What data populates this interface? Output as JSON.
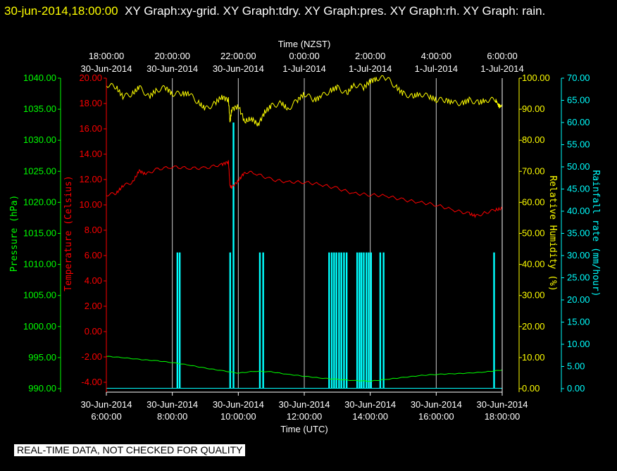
{
  "header": {
    "timestamp": "30-jun-2014,18:00:00",
    "graphs": "XY Graph:xy-grid.  XY Graph:tdry.  XY Graph:pres.  XY Graph:rh.  XY Graph: rain."
  },
  "notice": "REAL-TIME DATA, NOT CHECKED FOR QUALITY",
  "colors": {
    "pressure": "#00ff00",
    "temperature": "#ff0000",
    "humidity": "#ffff00",
    "rain": "#00ffff"
  },
  "chart_data": {
    "type": "line",
    "top_axis": {
      "label": "Time (NZST)",
      "ticks": [
        {
          "t": "18:00:00",
          "d": "30-Jun-2014"
        },
        {
          "t": "20:00:00",
          "d": "30-Jun-2014"
        },
        {
          "t": "22:00:00",
          "d": "30-Jun-2014"
        },
        {
          "t": "0:00:00",
          "d": "1-Jul-2014"
        },
        {
          "t": "2:00:00",
          "d": "1-Jul-2014"
        },
        {
          "t": "4:00:00",
          "d": "1-Jul-2014"
        },
        {
          "t": "6:00:00",
          "d": "1-Jul-2014"
        }
      ]
    },
    "bottom_axis": {
      "label": "Time (UTC)",
      "xlim": [
        "30-Jun-2014 6:00:00",
        "30-Jun-2014 18:00:00"
      ],
      "ticks": [
        {
          "d": "30-Jun-2014",
          "t": "6:00:00"
        },
        {
          "d": "30-Jun-2014",
          "t": "8:00:00"
        },
        {
          "d": "30-Jun-2014",
          "t": "10:00:00"
        },
        {
          "d": "30-Jun-2014",
          "t": "12:00:00"
        },
        {
          "d": "30-Jun-2014",
          "t": "14:00:00"
        },
        {
          "d": "30-Jun-2014",
          "t": "16:00:00"
        },
        {
          "d": "30-Jun-2014",
          "t": "18:00:00"
        }
      ]
    },
    "axes": {
      "pressure": {
        "label": "Pressure (hPa)",
        "ylim": [
          990,
          1040
        ],
        "ticks": [
          "1040.00",
          "1035.00",
          "1030.00",
          "1025.00",
          "1020.00",
          "1015.00",
          "1010.00",
          "1005.00",
          "1000.00",
          "995.00",
          "990.00"
        ]
      },
      "temperature": {
        "label": "Temperature (Celsius)",
        "ylim": [
          -4.5,
          20
        ],
        "ticks": [
          "20.00",
          "18.00",
          "16.00",
          "14.00",
          "12.00",
          "10.00",
          "8.00",
          "6.00",
          "4.00",
          "2.00",
          "0.00",
          "-2.00",
          "-4.00"
        ]
      },
      "humidity": {
        "label": "Relative Humidity (%)",
        "ylim": [
          0,
          100
        ],
        "ticks": [
          "100.00",
          "90.00",
          "80.00",
          "70.00",
          "60.00",
          "50.00",
          "40.00",
          "30.00",
          "20.00",
          "10.00",
          "0.00"
        ]
      },
      "rain": {
        "label": "Rainfall rate (mm/hour)",
        "ylim": [
          0,
          70
        ],
        "ticks": [
          "70.00",
          "65.00",
          "60.00",
          "55.00",
          "50.00",
          "45.00",
          "40.00",
          "35.00",
          "30.00",
          "25.00",
          "20.00",
          "15.00",
          "10.00",
          "5.00",
          "0.00"
        ]
      }
    },
    "series": [
      {
        "name": "pres",
        "axis": "pressure",
        "color": "#00ff00",
        "x": [
          6,
          6.5,
          7,
          7.5,
          8,
          8.5,
          9,
          9.5,
          10,
          10.5,
          11,
          11.5,
          12,
          12.5,
          13,
          13.5,
          14,
          14.5,
          15,
          15.5,
          16,
          16.5,
          17,
          17.5,
          18
        ],
        "y": [
          995.2,
          995,
          994.7,
          994.5,
          994.2,
          993.8,
          993.3,
          992.9,
          992.5,
          992.8,
          992.7,
          992.3,
          992,
          991.7,
          991.5,
          991.3,
          991.2,
          991.5,
          991.8,
          992.1,
          992.3,
          992.4,
          992.5,
          992.7,
          993
        ]
      },
      {
        "name": "tdry",
        "axis": "temperature",
        "color": "#ff0000",
        "x": [
          6,
          6.3,
          6.5,
          6.8,
          7,
          7.2,
          7.5,
          8,
          8.5,
          9,
          9.5,
          9.7,
          9.75,
          9.8,
          10,
          10.2,
          10.5,
          11,
          11.5,
          12,
          12.5,
          13,
          13.5,
          14,
          14.5,
          15,
          15.5,
          16,
          16.5,
          17,
          17.2,
          17.5,
          17.8,
          18
        ],
        "y": [
          10.8,
          10.9,
          11.5,
          11.8,
          12.7,
          12.4,
          12.8,
          13,
          12.9,
          12.9,
          13.2,
          13.4,
          11.5,
          11.4,
          11.9,
          12.6,
          12.5,
          12,
          11.8,
          11.8,
          11.6,
          11.3,
          10.9,
          10.8,
          10.7,
          10.4,
          10.2,
          10,
          9.6,
          9.3,
          9.1,
          9.4,
          9.6,
          9.7
        ]
      },
      {
        "name": "rh",
        "axis": "humidity",
        "color": "#ffff00",
        "x": [
          6,
          6.3,
          6.5,
          6.8,
          7,
          7.3,
          7.5,
          7.8,
          8,
          8.3,
          8.5,
          8.8,
          9,
          9.3,
          9.5,
          9.7,
          9.75,
          9.8,
          10,
          10.2,
          10.4,
          10.6,
          10.8,
          11,
          11.3,
          11.5,
          11.8,
          12,
          12.3,
          12.5,
          12.8,
          13,
          13.3,
          13.5,
          13.8,
          14,
          14.2,
          14.5,
          14.8,
          15,
          15.3,
          15.5,
          15.8,
          16,
          16.3,
          16.5,
          16.8,
          17,
          17.3,
          17.5,
          17.8,
          17.9,
          18
        ],
        "y": [
          98,
          97,
          94,
          95,
          97,
          94,
          96,
          97,
          95,
          95,
          95,
          92,
          90,
          92,
          94,
          93,
          86,
          90,
          91,
          86,
          87,
          85,
          89,
          91,
          92,
          90,
          93,
          95,
          93,
          94,
          96,
          97,
          95,
          98,
          97,
          99,
          100,
          100,
          97,
          95,
          94,
          95,
          94,
          93,
          93,
          92,
          92,
          93,
          92,
          93,
          93,
          91,
          91
        ]
      },
      {
        "name": "rain",
        "axis": "rain",
        "color": "#00ffff",
        "x": [
          8.15,
          8.22,
          9.75,
          9.85,
          10.65,
          10.75,
          12.75,
          12.83,
          12.9,
          12.97,
          13.05,
          13.12,
          13.2,
          13.28,
          13.6,
          13.67,
          13.73,
          13.8,
          13.88,
          13.95,
          14.02,
          14.3,
          14.4,
          17.75
        ],
        "y": [
          30.7,
          30.7,
          30.7,
          60,
          30.7,
          30.7,
          30.7,
          30.7,
          30.7,
          30.7,
          30.7,
          30.7,
          30.7,
          30.7,
          30.7,
          30.7,
          30.7,
          30.7,
          30.7,
          30.7,
          30.7,
          30.7,
          30.7,
          30.7
        ]
      }
    ]
  }
}
